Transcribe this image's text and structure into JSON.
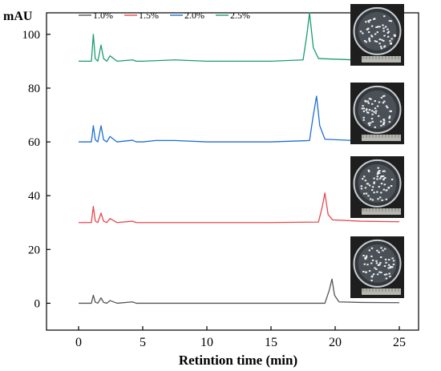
{
  "chart_data": {
    "type": "line",
    "title": "",
    "xlabel": "Retintion time (min)",
    "ylabel": "mAU",
    "xlim": [
      -2.5,
      26.5
    ],
    "ylim": [
      -10,
      108
    ],
    "x_ticks": [
      0,
      5,
      10,
      15,
      20,
      25
    ],
    "y_ticks": [
      0,
      20,
      40,
      60,
      80,
      100
    ],
    "grid": false,
    "legend_position": "top-left",
    "series": [
      {
        "name": "1.0%",
        "color": "#555555",
        "x": [
          0,
          1.0,
          1.15,
          1.3,
          1.5,
          1.75,
          1.95,
          2.2,
          2.45,
          3.0,
          4.2,
          4.5,
          5.0,
          10.0,
          15.0,
          19.2,
          19.55,
          19.75,
          19.95,
          20.3,
          22.0,
          25.0
        ],
        "y": [
          0,
          0,
          3,
          0.4,
          0,
          2,
          0.3,
          0,
          1,
          0,
          0.5,
          0,
          0,
          0,
          0,
          0,
          5,
          9,
          3,
          0.5,
          0.3,
          0.2
        ]
      },
      {
        "name": "1.5%",
        "color": "#e8474d",
        "x": [
          0,
          1.0,
          1.15,
          1.3,
          1.5,
          1.75,
          1.95,
          2.2,
          2.45,
          3.0,
          4.2,
          4.5,
          5.0,
          10.0,
          15.0,
          18.7,
          19.0,
          19.2,
          19.45,
          19.8,
          22.0,
          25.0
        ],
        "y": [
          30,
          30,
          36,
          30.6,
          30,
          33.5,
          30.5,
          30,
          31.5,
          30,
          30.5,
          30,
          30,
          30,
          30,
          30.2,
          36,
          41,
          33,
          31,
          30.5,
          30.3
        ]
      },
      {
        "name": "2.0%",
        "color": "#1f6ed4",
        "x": [
          0,
          1.0,
          1.15,
          1.3,
          1.5,
          1.75,
          1.95,
          2.2,
          2.45,
          3.0,
          4.2,
          4.5,
          5.0,
          6.0,
          7.5,
          10.0,
          15.0,
          18.0,
          18.3,
          18.55,
          18.8,
          19.2,
          22.0,
          25.0
        ],
        "y": [
          60,
          60,
          66,
          60.8,
          60,
          66,
          60.8,
          60,
          62,
          60,
          60.6,
          60,
          60,
          60.5,
          60.5,
          60,
          60,
          60.5,
          70,
          77,
          66,
          61,
          60.4,
          60.3
        ]
      },
      {
        "name": "2.5%",
        "color": "#1a9e6e",
        "x": [
          0,
          1.0,
          1.15,
          1.3,
          1.5,
          1.75,
          1.95,
          2.2,
          2.45,
          3.0,
          4.2,
          4.5,
          5.0,
          7.5,
          10.0,
          15.0,
          17.5,
          17.8,
          18.0,
          18.3,
          18.7,
          22.0,
          25.0
        ],
        "y": [
          90,
          90,
          100,
          91,
          90,
          96,
          91,
          90,
          92,
          90,
          90.5,
          90,
          90,
          90.5,
          90,
          90,
          90.5,
          100,
          108,
          95,
          91,
          90.4,
          90.3
        ]
      }
    ],
    "inset_images": [
      {
        "description": "petri dish photo",
        "attached_to": "2.5%"
      },
      {
        "description": "petri dish photo",
        "attached_to": "2.0%"
      },
      {
        "description": "petri dish photo",
        "attached_to": "1.5%"
      },
      {
        "description": "petri dish photo",
        "attached_to": "1.0%"
      }
    ]
  }
}
